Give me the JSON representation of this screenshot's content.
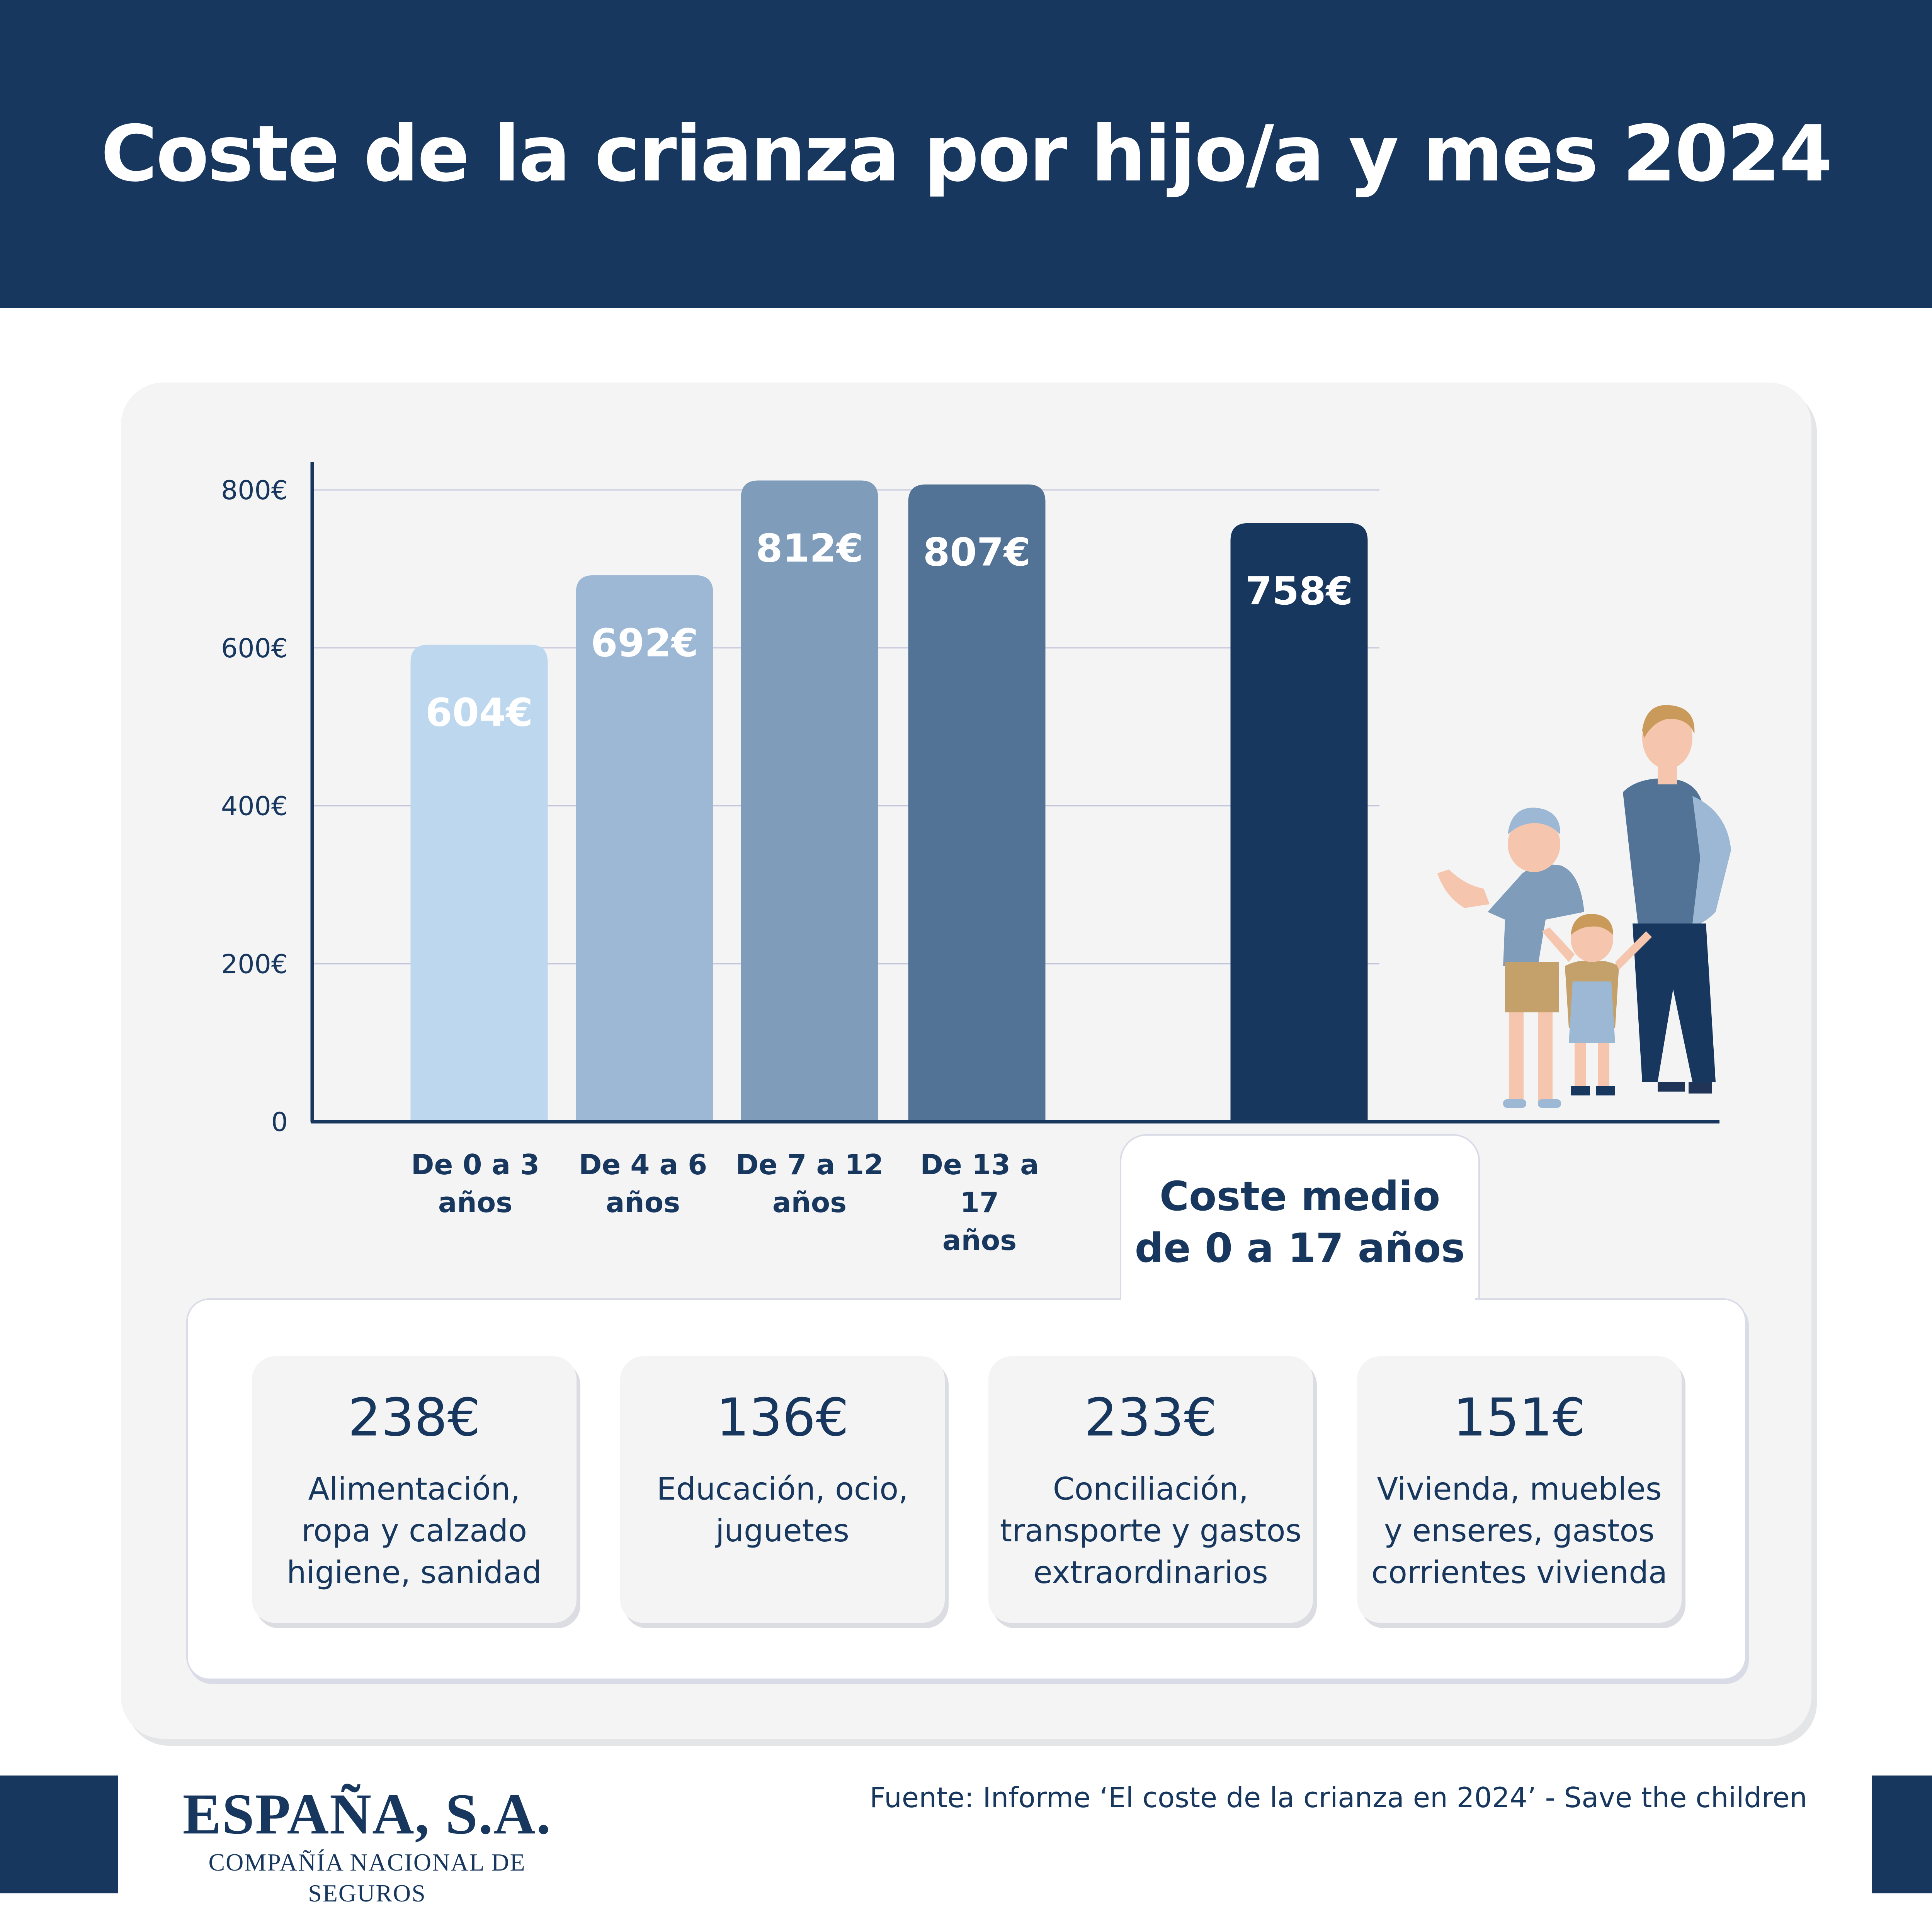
{
  "header": {
    "title": "Coste de la crianza por hijo/a y mes 2024"
  },
  "chart_data": {
    "type": "bar",
    "categories": [
      "De 0 a 3 años",
      "De 4 a 6 años",
      "De 7 a 12 años",
      "De 13 a 17 años",
      "Coste medio de 0 a 17 años"
    ],
    "category_lines": [
      [
        "De 0 a 3",
        "años"
      ],
      [
        "De 4 a 6",
        "años"
      ],
      [
        "De 7 a 12",
        "años"
      ],
      [
        "De 13 a 17",
        "años"
      ]
    ],
    "values": [
      604,
      692,
      812,
      807,
      758
    ],
    "value_labels": [
      "604€",
      "692€",
      "812€",
      "807€",
      "758€"
    ],
    "colors": [
      "#bdd7ee",
      "#9cb8d5",
      "#7f9cbb",
      "#527296",
      "#17375e"
    ],
    "yticks": [
      "0",
      "200€",
      "400€",
      "600€",
      "800€"
    ],
    "ytick_values": [
      0,
      200,
      400,
      600,
      800
    ],
    "ylim": [
      0,
      800
    ],
    "grid": true
  },
  "average": {
    "label_line1": "Coste medio",
    "label_line2": "de 0 a 17 años"
  },
  "breakdown": [
    {
      "value": "238€",
      "lines": [
        "Alimentación,",
        "ropa y calzado",
        "higiene, sanidad"
      ]
    },
    {
      "value": "136€",
      "lines": [
        "Educación, ocio,",
        "juguetes"
      ]
    },
    {
      "value": "233€",
      "lines": [
        "Conciliación,",
        "transporte y gastos",
        "extraordinarios"
      ]
    },
    {
      "value": "151€",
      "lines": [
        "Vivienda, muebles",
        "y enseres, gastos",
        "corrientes vivienda"
      ]
    }
  ],
  "footer": {
    "brand": "ESPAÑA, S.A.",
    "brand_sub": "COMPAÑÍA NACIONAL DE SEGUROS",
    "source": "Fuente: Informe ‘El coste de la crianza en 2024’ - Save the children"
  },
  "illustration": {
    "icon": "family-illustration-icon"
  }
}
